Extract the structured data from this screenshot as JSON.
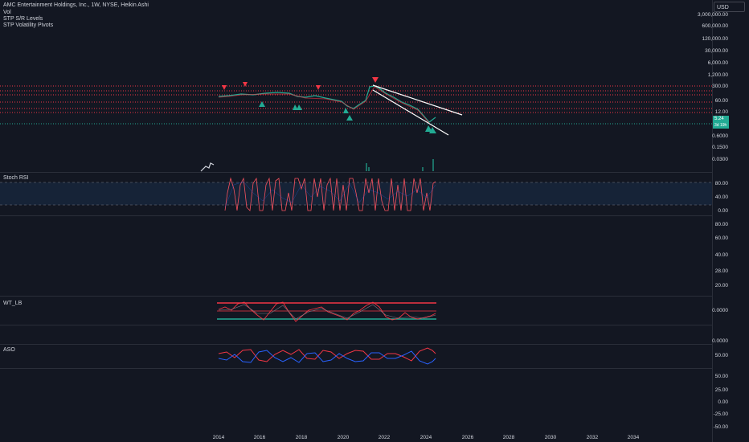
{
  "legend": {
    "symbol": "AMC Entertainment Holdings, Inc., 1W, NYSE, Heikin Ashi",
    "vol": "Vol",
    "indicator1": "STP S/R Levels",
    "indicator2": "STP Volatility Pivots"
  },
  "currency": "USD",
  "price_axis": [
    "3,000,000.00",
    "600,000.00",
    "120,000.00",
    "30,000.00",
    "6,000.00",
    "1,200.00",
    "300.00",
    "60.00",
    "12.00",
    "0.6000",
    "0.1500",
    "0.0300"
  ],
  "price_tag": {
    "value": "5.24",
    "sub": "3d 19h"
  },
  "panes": {
    "stoch": {
      "title": "Stoch RSI",
      "axis": [
        "80.00",
        "40.00",
        "0.00"
      ]
    },
    "rsi": {
      "title": "",
      "axis": [
        "80.00",
        "60.00",
        "40.00",
        "28.00",
        "20.00"
      ]
    },
    "wt": {
      "title": "WT_LB",
      "axis": [
        "0.0000",
        "0.0000"
      ]
    },
    "aso": {
      "title": "ASO",
      "axis": [
        "50.00",
        "50.00",
        "25.00",
        "0.00",
        "-25.00",
        "-50.00"
      ]
    }
  },
  "time_axis": [
    "2014",
    "2016",
    "2018",
    "2020",
    "2022",
    "2024",
    "2026",
    "2028",
    "2030",
    "2032",
    "2034"
  ],
  "colors": {
    "background": "#131722",
    "up": "#22ab94",
    "down": "#f23645",
    "pivot_up": "#22ab94",
    "pivot_down": "#f23645"
  }
}
